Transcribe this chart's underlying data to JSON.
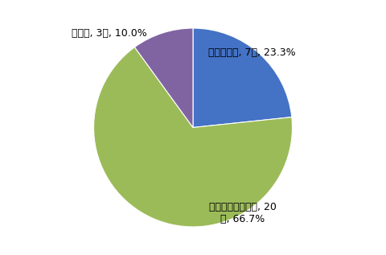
{
  "label_texts": [
    "値上げした, 7件, 23.3%",
    "変化は見られない, 20\n件, 66.7%",
    "その他, 3件, 10.0%"
  ],
  "values": [
    7,
    20,
    3
  ],
  "colors": [
    "#4472C4",
    "#9BBB59",
    "#8064A2"
  ],
  "startangle": 90,
  "counterclock": false,
  "background_color": "#FFFFFF",
  "figsize": [
    4.8,
    3.17
  ],
  "dpi": 100,
  "fontsize": 9
}
